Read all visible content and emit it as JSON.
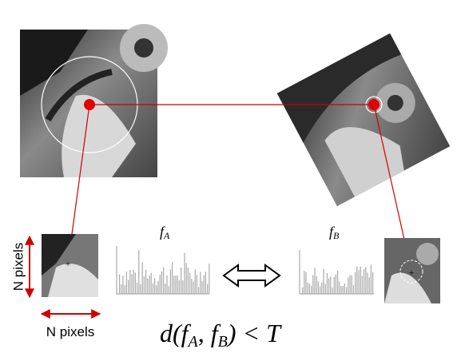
{
  "labels": {
    "n_pixels_vertical": "N pixels",
    "n_pixels_horizontal": "N pixels"
  },
  "descriptors": [
    {
      "symbol": "f",
      "subscript": "A"
    },
    {
      "symbol": "f",
      "subscript": "B"
    }
  ],
  "formula": [
    "d(",
    "f",
    "A",
    ", ",
    "f",
    "B",
    ") < T"
  ]
}
